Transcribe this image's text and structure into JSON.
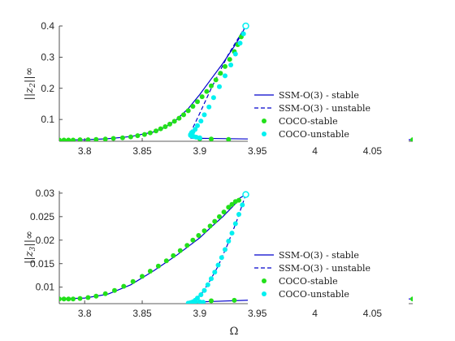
{
  "figure": {
    "xlabel": "Ω"
  },
  "colors": {
    "ssm": "#0000cc",
    "coco_stable": "#22e01a",
    "coco_unstable": "#00f0f0"
  },
  "chart_data": [
    {
      "type": "line",
      "ylabel_base": "||z",
      "ylabel_sub": "2",
      "ylabel_end": "||∞",
      "xlim": [
        3.778,
        4.085
      ],
      "ylim": [
        0.03,
        0.4
      ],
      "xticks": [
        3.8,
        3.85,
        3.9,
        3.95,
        4,
        4.05
      ],
      "xticklabels": [
        "3.8",
        "3.85",
        "3.9",
        "3.95",
        "4",
        "4.05"
      ],
      "yticks": [
        0.1,
        0.2,
        0.3,
        0.4
      ],
      "yticklabels": [
        "0.1",
        "0.2",
        "0.3",
        "0.4"
      ],
      "legend": {
        "position": "right",
        "entries": [
          "SSM-O(3) - stable",
          "SSM-O(3) - unstable",
          "COCO-stable",
          "COCO-unstable"
        ]
      },
      "series": [
        {
          "kind": "ssm-stable-upper",
          "x": [
            3.778,
            3.8,
            3.82,
            3.84,
            3.86,
            3.87,
            3.88,
            3.89,
            3.9,
            3.91,
            3.92,
            3.93,
            3.935,
            3.94
          ],
          "y": [
            0.034,
            0.035,
            0.038,
            0.045,
            0.06,
            0.075,
            0.1,
            0.135,
            0.18,
            0.23,
            0.28,
            0.335,
            0.365,
            0.4
          ]
        },
        {
          "kind": "ssm-stable-lower",
          "x": [
            3.892,
            3.95,
            4.0,
            4.05,
            4.085
          ],
          "y": [
            0.04,
            0.037,
            0.036,
            0.035,
            0.035
          ]
        },
        {
          "kind": "ssm-unstable",
          "x": [
            3.94,
            3.925,
            3.91,
            3.9,
            3.893,
            3.892
          ],
          "y": [
            0.4,
            0.31,
            0.2,
            0.12,
            0.065,
            0.04
          ]
        },
        {
          "kind": "coco-stable",
          "x": [
            3.778,
            3.782,
            3.786,
            3.79,
            3.796,
            3.803,
            3.81,
            3.818,
            3.825,
            3.833,
            3.84,
            3.846,
            3.852,
            3.857,
            3.862,
            3.866,
            3.87,
            3.874,
            3.878,
            3.882,
            3.886,
            3.89,
            3.894,
            3.898,
            3.902,
            3.906,
            3.91,
            3.914,
            3.918,
            3.922,
            3.926,
            3.93,
            3.933,
            3.936,
            3.9,
            3.91,
            3.925,
            3.945,
            3.975,
            4.005,
            4.045,
            4.085
          ],
          "y": [
            0.034,
            0.034,
            0.034,
            0.034,
            0.035,
            0.035,
            0.036,
            0.037,
            0.039,
            0.041,
            0.044,
            0.048,
            0.052,
            0.057,
            0.063,
            0.07,
            0.077,
            0.085,
            0.094,
            0.104,
            0.115,
            0.128,
            0.142,
            0.157,
            0.173,
            0.19,
            0.208,
            0.227,
            0.248,
            0.27,
            0.293,
            0.318,
            0.34,
            0.365,
            0.038,
            0.037,
            0.036,
            0.036,
            0.035,
            0.035,
            0.035,
            0.035
          ]
        },
        {
          "kind": "coco-unstable",
          "x": [
            3.94,
            3.938,
            3.935,
            3.931,
            3.927,
            3.922,
            3.917,
            3.912,
            3.908,
            3.904,
            3.901,
            3.898,
            3.896,
            3.894,
            3.893,
            3.892,
            3.892,
            3.893,
            3.895,
            3.897,
            3.9,
            3.893
          ],
          "y": [
            0.4,
            0.375,
            0.345,
            0.31,
            0.275,
            0.24,
            0.205,
            0.17,
            0.14,
            0.115,
            0.095,
            0.08,
            0.068,
            0.06,
            0.055,
            0.052,
            0.049,
            0.047,
            0.045,
            0.043,
            0.041,
            0.058
          ]
        }
      ]
    },
    {
      "type": "line",
      "ylabel_base": "||z",
      "ylabel_sub": "3",
      "ylabel_end": "||∞",
      "xlim": [
        3.778,
        4.085
      ],
      "ylim": [
        0.0065,
        0.0305
      ],
      "xticks": [
        3.8,
        3.85,
        3.9,
        3.95,
        4,
        4.05
      ],
      "xticklabels": [
        "3.8",
        "3.85",
        "3.9",
        "3.95",
        "4",
        "4.05"
      ],
      "yticks": [
        0.01,
        0.015,
        0.02,
        0.025,
        0.03
      ],
      "yticklabels": [
        "0.01",
        "0.015",
        "0.02",
        "0.025",
        "0.03"
      ],
      "legend": {
        "position": "right",
        "entries": [
          "SSM-O(3) - stable",
          "SSM-O(3) - unstable",
          "COCO-stable",
          "COCO-unstable"
        ]
      },
      "series": [
        {
          "kind": "ssm-stable-upper",
          "x": [
            3.778,
            3.8,
            3.82,
            3.84,
            3.86,
            3.88,
            3.9,
            3.91,
            3.92,
            3.93,
            3.935,
            3.94
          ],
          "y": [
            0.0075,
            0.0077,
            0.0085,
            0.0105,
            0.0135,
            0.0168,
            0.0205,
            0.0228,
            0.025,
            0.0275,
            0.029,
            0.0297
          ]
        },
        {
          "kind": "ssm-stable-lower",
          "x": [
            3.89,
            3.95,
            4.0,
            4.05,
            4.085
          ],
          "y": [
            0.0068,
            0.0073,
            0.0074,
            0.0075,
            0.0075
          ]
        },
        {
          "kind": "ssm-unstable",
          "x": [
            3.94,
            3.932,
            3.924,
            3.916,
            3.908,
            3.902,
            3.897,
            3.893,
            3.89
          ],
          "y": [
            0.0297,
            0.024,
            0.019,
            0.0145,
            0.011,
            0.0088,
            0.0075,
            0.0069,
            0.0068
          ]
        },
        {
          "kind": "coco-stable",
          "x": [
            3.778,
            3.782,
            3.786,
            3.79,
            3.796,
            3.803,
            3.81,
            3.818,
            3.826,
            3.834,
            3.842,
            3.85,
            3.857,
            3.864,
            3.871,
            3.877,
            3.883,
            3.889,
            3.894,
            3.899,
            3.904,
            3.909,
            3.913,
            3.917,
            3.921,
            3.925,
            3.928,
            3.931,
            3.934,
            3.91,
            3.93,
            3.95,
            3.975,
            4.005,
            4.045,
            4.085
          ],
          "y": [
            0.0075,
            0.0075,
            0.0075,
            0.0075,
            0.0076,
            0.0078,
            0.0081,
            0.0086,
            0.0093,
            0.0102,
            0.0112,
            0.0123,
            0.0134,
            0.0145,
            0.0156,
            0.0167,
            0.0178,
            0.0189,
            0.02,
            0.021,
            0.022,
            0.023,
            0.024,
            0.025,
            0.026,
            0.027,
            0.0276,
            0.0282,
            0.0285,
            0.0071,
            0.0072,
            0.0073,
            0.0074,
            0.0074,
            0.0075,
            0.0075
          ]
        },
        {
          "kind": "coco-unstable",
          "x": [
            3.94,
            3.937,
            3.934,
            3.931,
            3.928,
            3.925,
            3.922,
            3.919,
            3.916,
            3.913,
            3.91,
            3.907,
            3.904,
            3.901,
            3.898,
            3.896,
            3.894,
            3.892,
            3.89,
            3.893,
            3.896,
            3.9,
            3.903
          ],
          "y": [
            0.0297,
            0.0275,
            0.0255,
            0.0235,
            0.0215,
            0.0198,
            0.018,
            0.0163,
            0.0147,
            0.0132,
            0.0118,
            0.0105,
            0.0093,
            0.0084,
            0.0077,
            0.0072,
            0.0069,
            0.0067,
            0.0066,
            0.0067,
            0.0068,
            0.0069,
            0.0068
          ]
        }
      ]
    }
  ]
}
